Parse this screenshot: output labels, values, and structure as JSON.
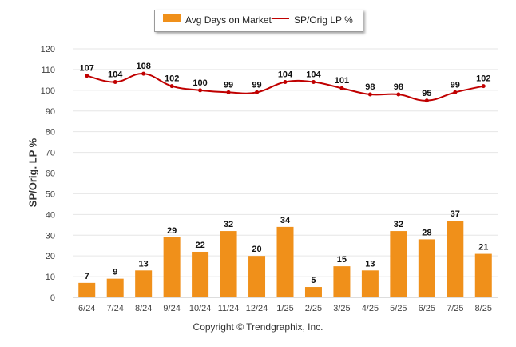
{
  "chart_data": {
    "type": "bar",
    "categories": [
      "6/24",
      "7/24",
      "8/24",
      "9/24",
      "10/24",
      "11/24",
      "12/24",
      "1/25",
      "2/25",
      "3/25",
      "4/25",
      "5/25",
      "6/25",
      "7/25",
      "8/25"
    ],
    "series": [
      {
        "name": "Avg Days on Market",
        "type": "bar",
        "color": "#f0901a",
        "values": [
          7,
          9,
          13,
          29,
          22,
          32,
          20,
          34,
          5,
          15,
          13,
          32,
          28,
          37,
          21
        ]
      },
      {
        "name": "SP/Orig LP %",
        "type": "line",
        "color": "#c00000",
        "values": [
          107,
          104,
          108,
          102,
          100,
          99,
          99,
          104,
          104,
          101,
          98,
          98,
          95,
          99,
          102
        ]
      }
    ],
    "ylabel": "SP/Orig. LP %",
    "ylim": [
      0,
      120
    ],
    "yticks": [
      0,
      10,
      20,
      30,
      40,
      50,
      60,
      70,
      80,
      90,
      100,
      110,
      120
    ],
    "grid": true,
    "legend": "top-center",
    "copyright": "Copyright © Trendgraphix, Inc."
  }
}
